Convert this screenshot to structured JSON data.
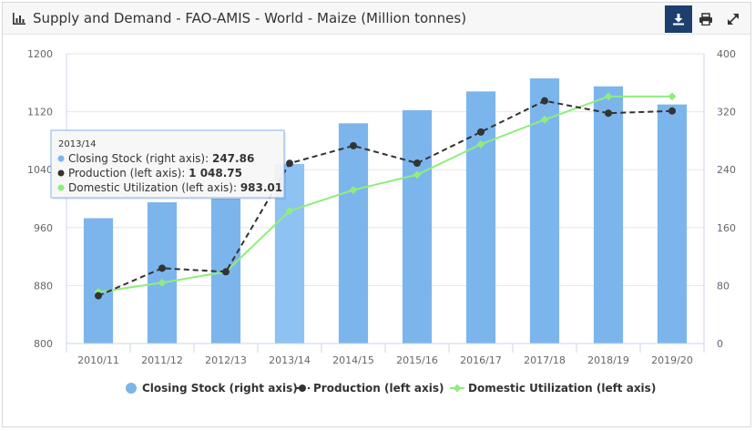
{
  "header": {
    "title": "Supply and Demand - FAO-AMIS - World - Maize (Million tonnes)",
    "icons": {
      "title": "bar-chart-icon",
      "download": "download-icon",
      "print": "print-icon",
      "expand": "expand-icon"
    }
  },
  "colors": {
    "bar": "#7cb5ec",
    "bar_highlight": "#8dc2f3",
    "production": "#333333",
    "utilization": "#90ed7d",
    "download_bg": "#1d3f6e",
    "grid": "#e6e6e6"
  },
  "chart_data": {
    "type": "bar+line",
    "categories": [
      "2010/11",
      "2011/12",
      "2012/13",
      "2013/14",
      "2014/15",
      "2015/16",
      "2016/17",
      "2017/18",
      "2018/19",
      "2019/20"
    ],
    "y_left": {
      "ticks": [
        800,
        880,
        960,
        1040,
        1120,
        1200
      ],
      "range": [
        800,
        1200
      ]
    },
    "y_right": {
      "ticks": [
        0,
        80,
        160,
        240,
        320,
        400
      ],
      "range": [
        0,
        400
      ]
    },
    "series": [
      {
        "name": "Closing Stock (right axis)",
        "type": "bar",
        "axis": "right",
        "values": [
          173,
          195,
          200,
          247.86,
          304,
          322,
          348,
          366,
          355,
          330
        ]
      },
      {
        "name": "Production (left axis)",
        "type": "line",
        "dash": "dashed",
        "axis": "left",
        "values": [
          866,
          904,
          899,
          1048.75,
          1073,
          1049,
          1092,
          1135,
          1118,
          1121
        ]
      },
      {
        "name": "Domestic Utilization (left axis)",
        "type": "line",
        "dash": "solid",
        "axis": "left",
        "values": [
          871,
          884,
          899,
          983.01,
          1012,
          1033,
          1075,
          1109,
          1141,
          1141
        ]
      }
    ],
    "tooltip": {
      "category": "2013/14",
      "rows": [
        {
          "label": "Closing Stock (right axis): ",
          "value": "247.86"
        },
        {
          "label": "Production (left axis): ",
          "value": "1 048.75"
        },
        {
          "label": "Domestic Utilization (left axis): ",
          "value": "983.01"
        }
      ]
    },
    "legend": [
      {
        "label": "Closing Stock (right axis)"
      },
      {
        "label": "Production (left axis)"
      },
      {
        "label": "Domestic Utilization (left axis)"
      }
    ]
  }
}
